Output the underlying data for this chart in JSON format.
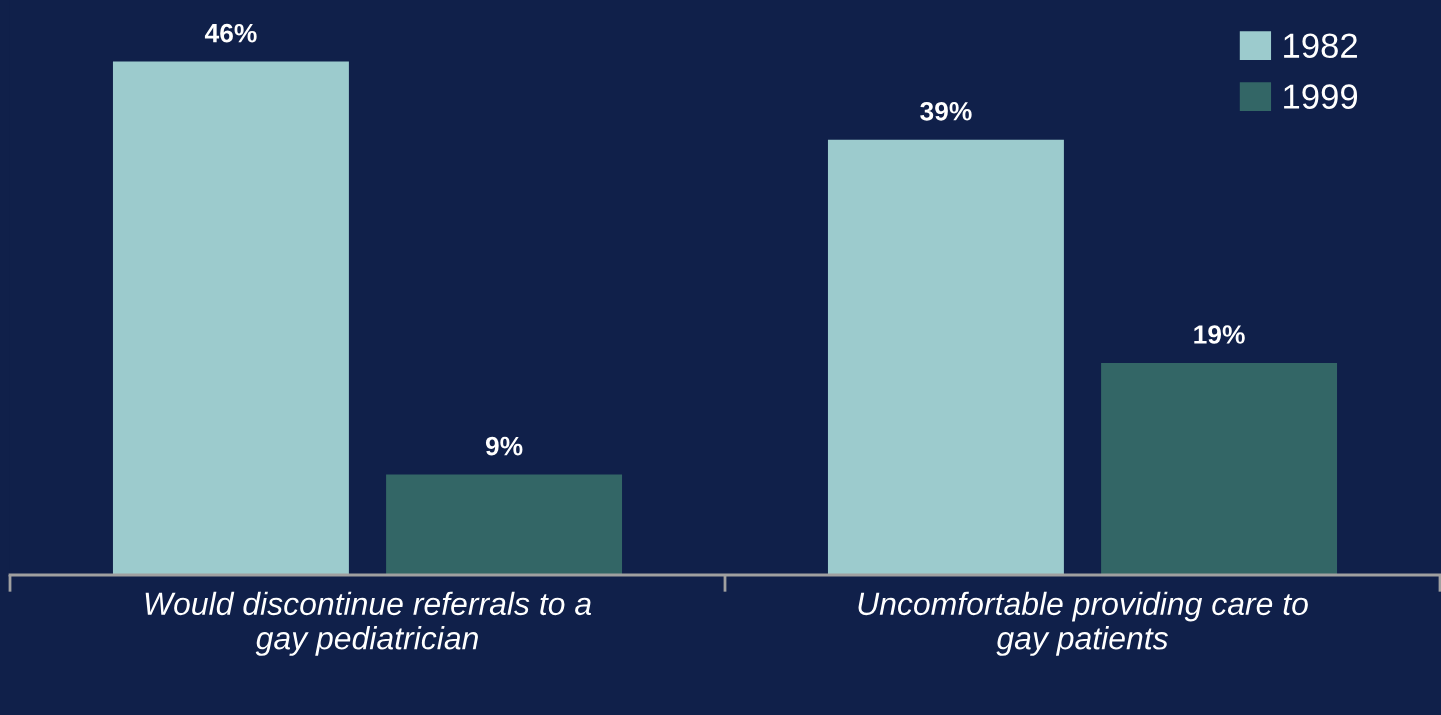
{
  "chart_data": {
    "type": "bar",
    "categories": [
      "Would discontinue referrals to a gay pediatrician",
      "Uncomfortable providing care to gay patients"
    ],
    "series": [
      {
        "name": "1982",
        "color": "#9ccbcd",
        "values": [
          46,
          39
        ],
        "value_labels": [
          "46%",
          "39%"
        ]
      },
      {
        "name": "1999",
        "color": "#336666",
        "values": [
          9,
          19
        ],
        "value_labels": [
          "9%",
          "19%"
        ]
      }
    ],
    "legend": "top right",
    "grid": false
  }
}
